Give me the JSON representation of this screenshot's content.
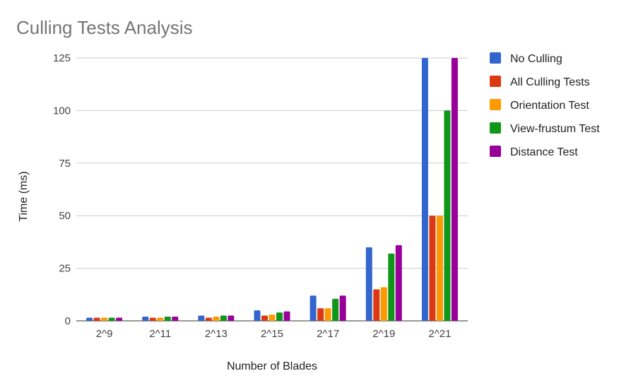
{
  "chart_data": {
    "type": "bar",
    "title": "Culling Tests Analysis",
    "xlabel": "Number of Blades",
    "ylabel": "Time (ms)",
    "categories": [
      "2^9",
      "2^11",
      "2^13",
      "2^15",
      "2^17",
      "2^19",
      "2^21"
    ],
    "ylim": [
      0,
      125
    ],
    "yticks": [
      0,
      25,
      50,
      75,
      100,
      125
    ],
    "grid": true,
    "legend_position": "right",
    "series": [
      {
        "name": "No Culling",
        "color": "#3366cc",
        "values": [
          1.5,
          2,
          2.5,
          5,
          12,
          35,
          125
        ]
      },
      {
        "name": "All Culling Tests",
        "color": "#dc3912",
        "values": [
          1.5,
          1.5,
          1.5,
          2.5,
          6,
          15,
          50
        ]
      },
      {
        "name": "Orientation Test",
        "color": "#ff9900",
        "values": [
          1.5,
          1.5,
          2,
          3,
          6,
          16,
          50
        ]
      },
      {
        "name": "View-frustum Test",
        "color": "#109618",
        "values": [
          1.5,
          2,
          2.5,
          4,
          10.5,
          32,
          100
        ]
      },
      {
        "name": "Distance Test",
        "color": "#990099",
        "values": [
          1.5,
          2,
          2.5,
          4.5,
          12,
          36,
          125
        ]
      }
    ]
  }
}
